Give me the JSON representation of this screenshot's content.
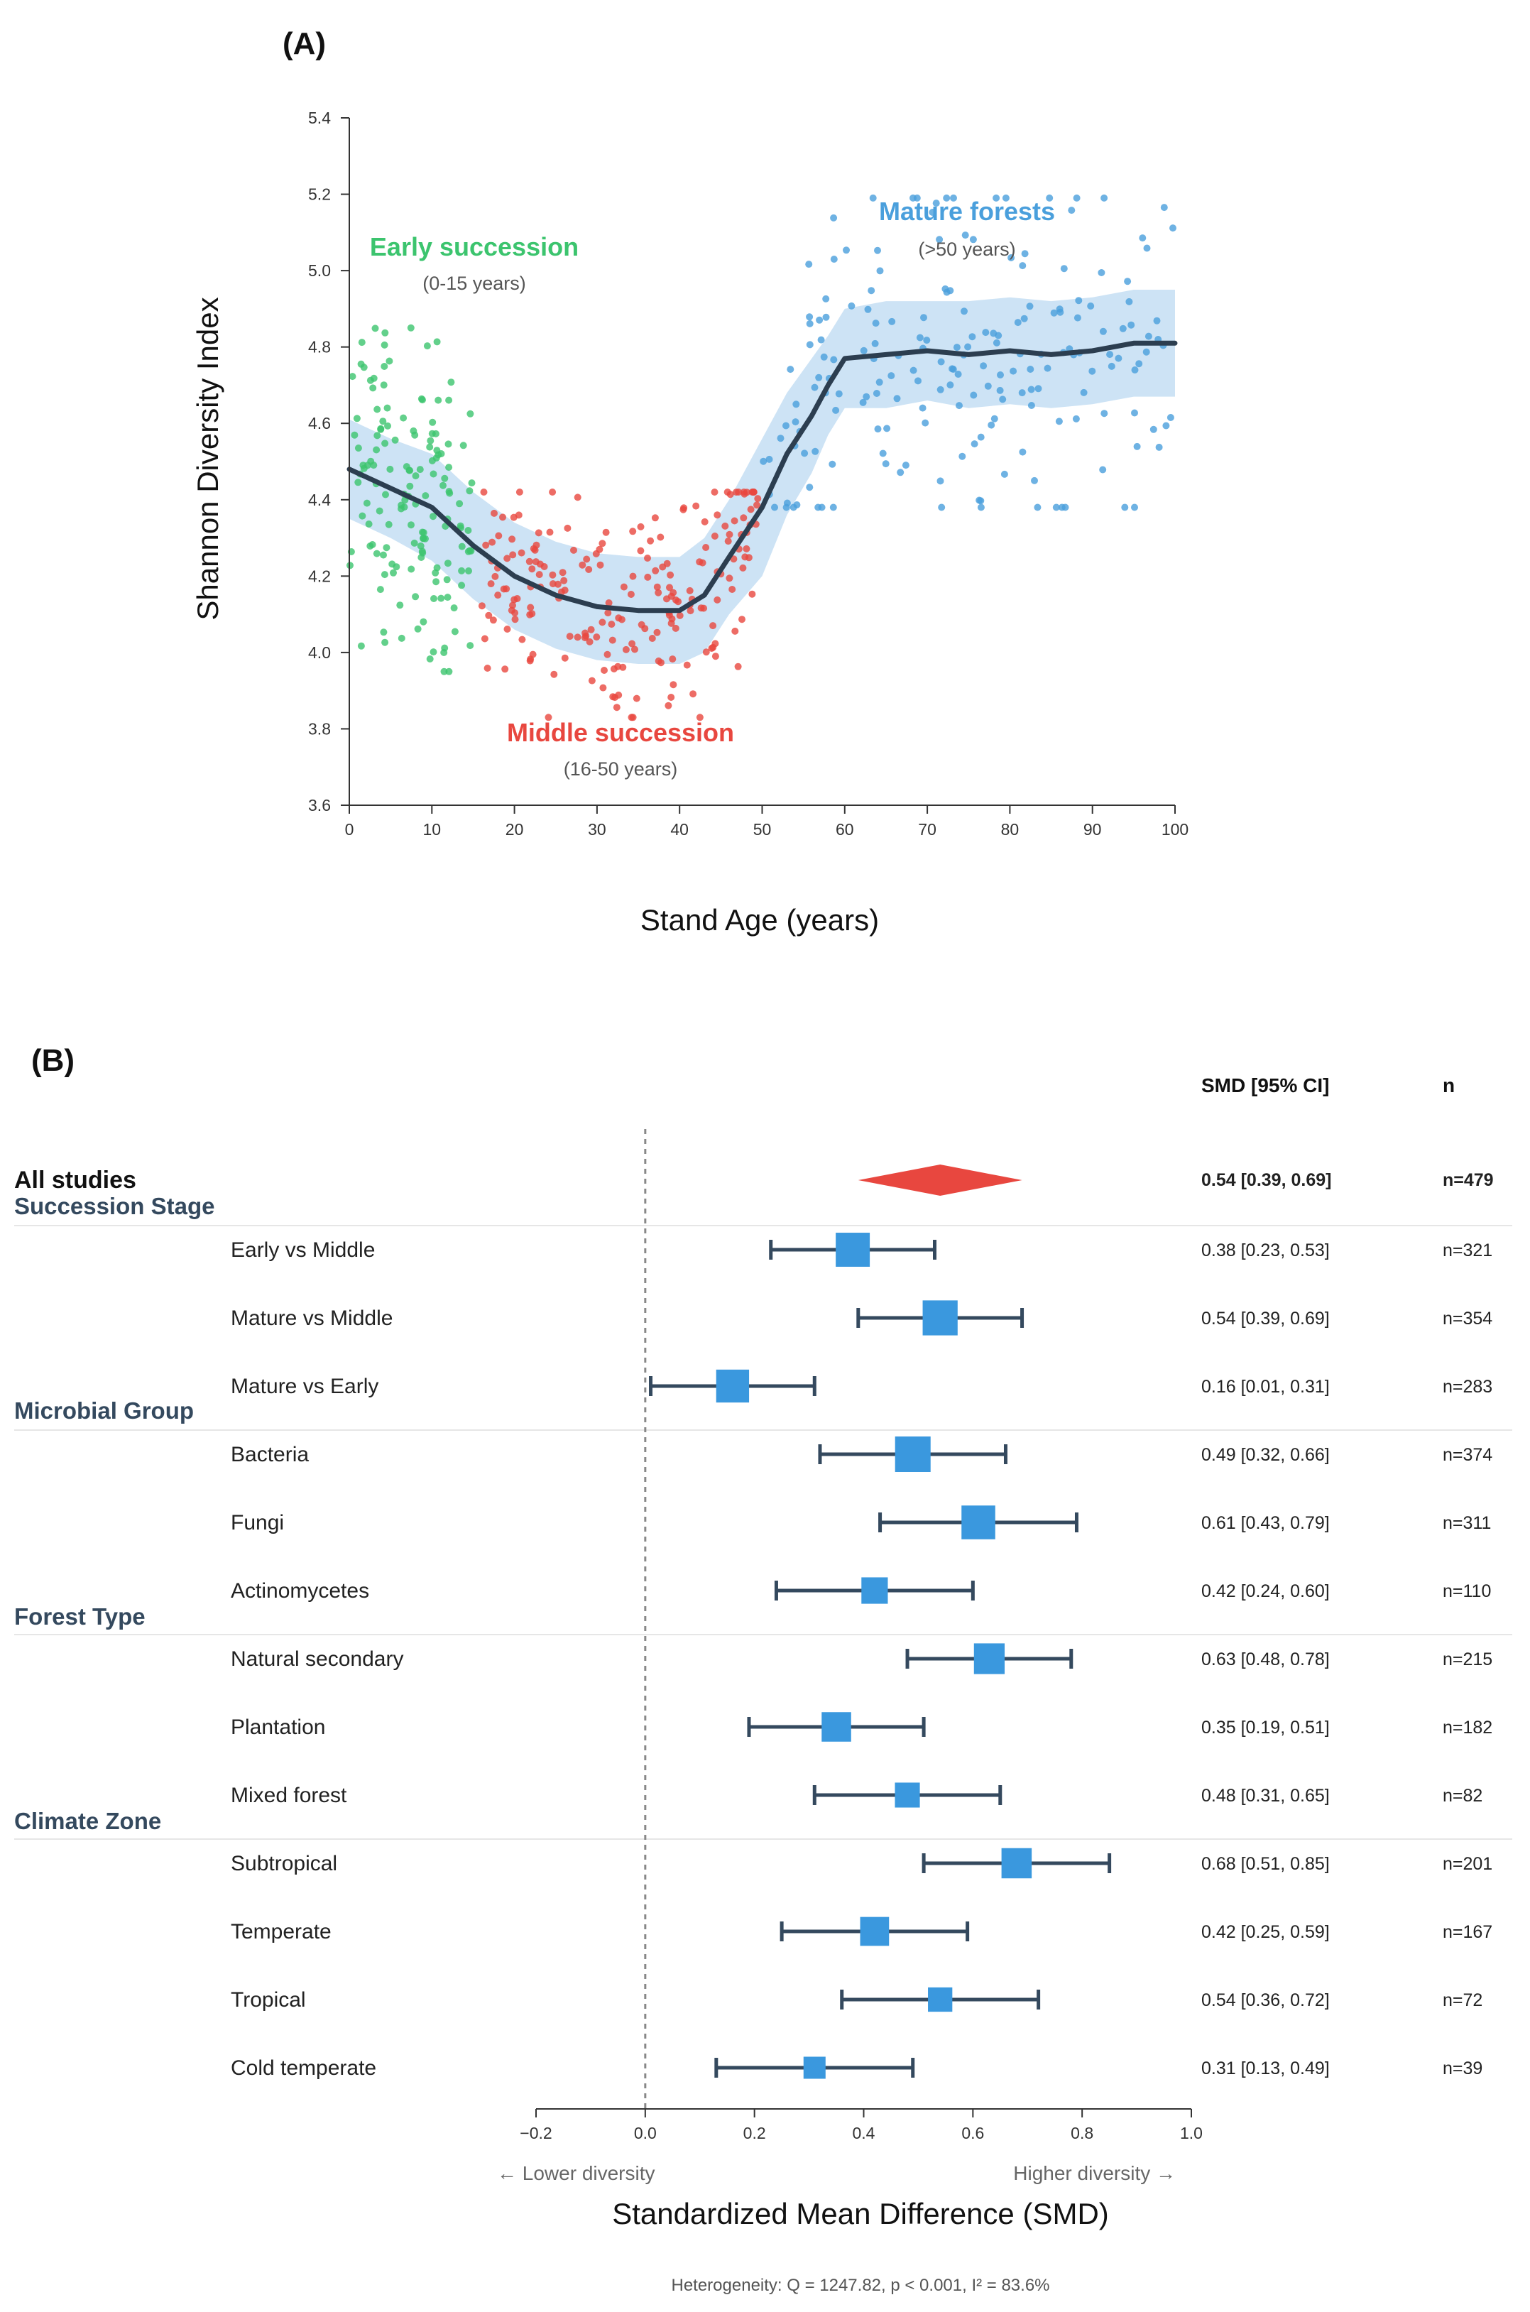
{
  "panelA": {
    "label": "(A)",
    "xlabel": "Stand Age (years)",
    "ylabel": "Shannon Diversity Index",
    "annotations": {
      "early": {
        "title": "Early succession",
        "sub": "(0-15 years)"
      },
      "middle": {
        "title": "Middle succession",
        "sub": "(16-50 years)"
      },
      "mature": {
        "title": "Mature forests",
        "sub": "(>50 years)"
      }
    }
  },
  "panelB": {
    "label": "(B)",
    "col_ci": "SMD [95% CI]",
    "col_n": "n",
    "overall": {
      "label": "All studies",
      "ci": "0.54 [0.39, 0.69]",
      "n": "n=479"
    },
    "xlabel": "Standardized Mean Difference (SMD)",
    "dir_low": "← Lower diversity",
    "dir_high": "Higher diversity →",
    "footnote": "Heterogeneity: Q = 1247.82, p < 0.001, I² = 83.6%",
    "groups": [
      "Succession Stage",
      "Microbial Group",
      "Forest Type",
      "Climate Zone"
    ],
    "rows": [
      {
        "label": "Early vs Middle",
        "ci": "0.38 [0.23, 0.53]",
        "n": "n=321"
      },
      {
        "label": "Mature vs Middle",
        "ci": "0.54 [0.39, 0.69]",
        "n": "n=354"
      },
      {
        "label": "Mature vs Early",
        "ci": "0.16 [0.01, 0.31]",
        "n": "n=283"
      },
      {
        "label": "Bacteria",
        "ci": "0.49 [0.32, 0.66]",
        "n": "n=374"
      },
      {
        "label": "Fungi",
        "ci": "0.61 [0.43, 0.79]",
        "n": "n=311"
      },
      {
        "label": "Actinomycetes",
        "ci": "0.42 [0.24, 0.60]",
        "n": "n=110"
      },
      {
        "label": "Natural secondary",
        "ci": "0.63 [0.48, 0.78]",
        "n": "n=215"
      },
      {
        "label": "Plantation",
        "ci": "0.35 [0.19, 0.51]",
        "n": "n=182"
      },
      {
        "label": "Mixed forest",
        "ci": "0.48 [0.31, 0.65]",
        "n": "n=82"
      },
      {
        "label": "Subtropical",
        "ci": "0.68 [0.51, 0.85]",
        "n": "n=201"
      },
      {
        "label": "Temperate",
        "ci": "0.42 [0.25, 0.59]",
        "n": "n=167"
      },
      {
        "label": "Tropical",
        "ci": "0.54 [0.36, 0.72]",
        "n": "n=72"
      },
      {
        "label": "Cold temperate",
        "ci": "0.31 [0.13, 0.49]",
        "n": "n=39"
      }
    ]
  },
  "chart_data": [
    {
      "type": "scatter",
      "title": "(A)",
      "xlabel": "Stand Age (years)",
      "ylabel": "Shannon Diversity Index",
      "xlim": [
        0,
        100
      ],
      "ylim": [
        3.6,
        5.4
      ],
      "x_ticks": [
        0,
        10,
        20,
        30,
        40,
        50,
        60,
        70,
        80,
        90,
        100
      ],
      "y_ticks": [
        3.6,
        3.8,
        4.0,
        4.2,
        4.4,
        4.6,
        4.8,
        5.0,
        5.2,
        5.4
      ],
      "colors": {
        "early": "#3cc46e",
        "middle": "#e8473f",
        "mature": "#4a9fdc",
        "trend": "#2c3e50",
        "band": "#bcd9f2"
      },
      "trend": {
        "x": [
          0,
          5,
          10,
          15,
          20,
          25,
          30,
          35,
          40,
          43,
          46,
          50,
          53,
          56,
          58,
          60,
          65,
          70,
          75,
          80,
          85,
          90,
          95,
          100
        ],
        "y": [
          4.48,
          4.43,
          4.38,
          4.28,
          4.2,
          4.15,
          4.12,
          4.11,
          4.11,
          4.15,
          4.25,
          4.38,
          4.52,
          4.62,
          4.7,
          4.77,
          4.78,
          4.79,
          4.78,
          4.79,
          4.78,
          4.79,
          4.81,
          4.81
        ],
        "ci_lower": [
          4.35,
          4.3,
          4.24,
          4.14,
          4.06,
          4.01,
          3.98,
          3.97,
          3.97,
          4.0,
          4.1,
          4.2,
          4.36,
          4.47,
          4.57,
          4.64,
          4.64,
          4.66,
          4.64,
          4.65,
          4.64,
          4.65,
          4.67,
          4.67
        ],
        "ci_upper": [
          4.61,
          4.56,
          4.52,
          4.42,
          4.34,
          4.29,
          4.26,
          4.25,
          4.25,
          4.3,
          4.4,
          4.56,
          4.68,
          4.77,
          4.83,
          4.9,
          4.92,
          4.92,
          4.92,
          4.93,
          4.92,
          4.93,
          4.95,
          4.95
        ]
      },
      "series": [
        {
          "name": "Early succession",
          "x_range": [
            0,
            15
          ],
          "y_min": 3.95,
          "y_max": 4.85,
          "count": 150
        },
        {
          "name": "Middle succession",
          "x_range": [
            16,
            50
          ],
          "y_min": 3.83,
          "y_max": 4.42,
          "count": 210
        },
        {
          "name": "Mature forests",
          "x_range": [
            50,
            100
          ],
          "y_min": 4.38,
          "y_max": 5.19,
          "count": 190
        }
      ]
    },
    {
      "type": "forest",
      "title": "(B)",
      "xlabel": "Standardized Mean Difference (SMD)",
      "xlim": [
        -0.2,
        1.0
      ],
      "x_ticks": [
        -0.2,
        0.0,
        0.2,
        0.4,
        0.6,
        0.8,
        1.0
      ],
      "x_tick_labels": [
        "−0.2",
        "0.0",
        "0.2",
        "0.4",
        "0.6",
        "0.8",
        "1.0"
      ],
      "overall": {
        "label": "All studies",
        "smd": 0.54,
        "lo": 0.39,
        "hi": 0.69,
        "n": 479
      },
      "rows": [
        {
          "label": "Early vs Middle",
          "smd": 0.38,
          "lo": 0.23,
          "hi": 0.53,
          "n": 321
        },
        {
          "label": "Mature vs Middle",
          "smd": 0.54,
          "lo": 0.39,
          "hi": 0.69,
          "n": 354
        },
        {
          "label": "Mature vs Early",
          "smd": 0.16,
          "lo": 0.01,
          "hi": 0.31,
          "n": 283
        },
        {
          "label": "Bacteria",
          "smd": 0.49,
          "lo": 0.32,
          "hi": 0.66,
          "n": 374
        },
        {
          "label": "Fungi",
          "smd": 0.61,
          "lo": 0.43,
          "hi": 0.79,
          "n": 311
        },
        {
          "label": "Actinomycetes",
          "smd": 0.42,
          "lo": 0.24,
          "hi": 0.6,
          "n": 110
        },
        {
          "label": "Natural secondary",
          "smd": 0.63,
          "lo": 0.48,
          "hi": 0.78,
          "n": 215
        },
        {
          "label": "Plantation",
          "smd": 0.35,
          "lo": 0.19,
          "hi": 0.51,
          "n": 182
        },
        {
          "label": "Mixed forest",
          "smd": 0.48,
          "lo": 0.31,
          "hi": 0.65,
          "n": 82
        },
        {
          "label": "Subtropical",
          "smd": 0.68,
          "lo": 0.51,
          "hi": 0.85,
          "n": 201
        },
        {
          "label": "Temperate",
          "smd": 0.42,
          "lo": 0.25,
          "hi": 0.59,
          "n": 167
        },
        {
          "label": "Tropical",
          "smd": 0.54,
          "lo": 0.36,
          "hi": 0.72,
          "n": 72
        },
        {
          "label": "Cold temperate",
          "smd": 0.31,
          "lo": 0.13,
          "hi": 0.49,
          "n": 39
        }
      ],
      "colors": {
        "square": "#3a98de",
        "whisker": "#34495e",
        "diamond": "#e8473f",
        "null_line": "#888888"
      }
    }
  ]
}
